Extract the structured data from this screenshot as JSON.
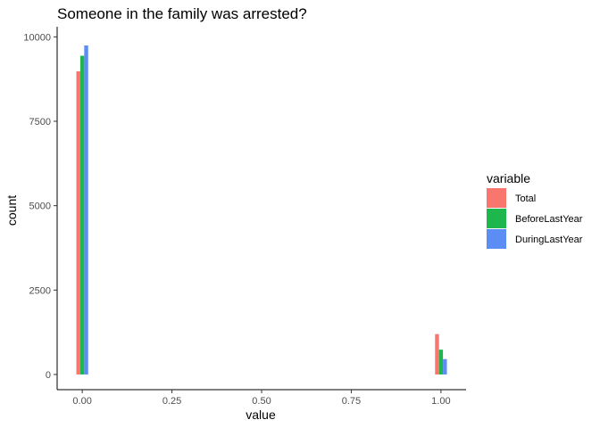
{
  "chart_data": {
    "type": "bar",
    "title": "Someone in the family was arrested?",
    "xlabel": "value",
    "ylabel": "count",
    "xlim": [
      -0.07,
      1.07
    ],
    "ylim": [
      -450,
      10300
    ],
    "x_ticks": [
      0.0,
      0.25,
      0.5,
      0.75,
      1.0
    ],
    "x_tick_labels": [
      "0.00",
      "0.25",
      "0.50",
      "0.75",
      "1.00"
    ],
    "y_ticks": [
      0,
      2500,
      5000,
      7500,
      10000
    ],
    "y_tick_labels": [
      "0",
      "2500",
      "5000",
      "7500",
      "10000"
    ],
    "categories": [
      0.0,
      1.0
    ],
    "legend": {
      "title": "variable",
      "placement": "right"
    },
    "grid": false,
    "series": [
      {
        "name": "Total",
        "color": "#F8766D",
        "values": [
          8980,
          1195
        ]
      },
      {
        "name": "BeforeLastYear",
        "color": "#1DB74E",
        "values": [
          9440,
          735
        ]
      },
      {
        "name": "DuringLastYear",
        "color": "#5B8DF5",
        "values": [
          9745,
          455
        ]
      }
    ]
  }
}
